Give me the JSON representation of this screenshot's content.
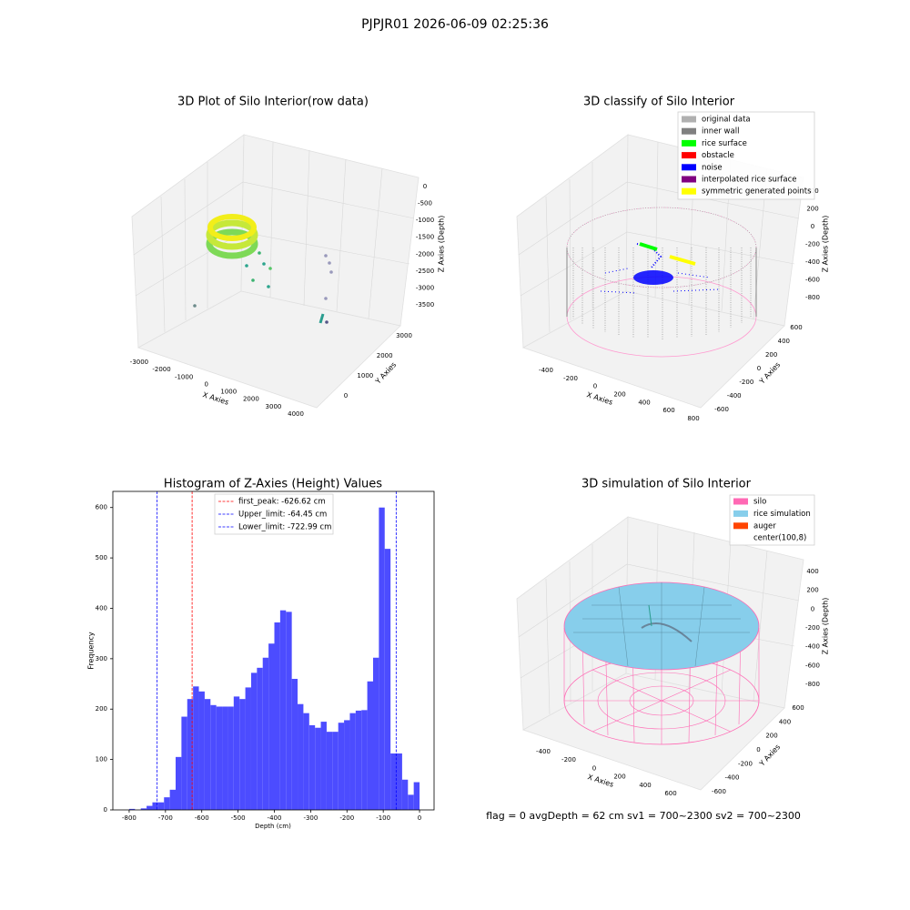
{
  "suptitle": "PJPJR01 2026-06-09 02:25:36",
  "footer": "flag = 0     avgDepth = 62 cm     sv1 = 700~2300  sv2 = 700~2300",
  "chart_data": [
    {
      "type": "scatter3d",
      "title": "3D Plot of Silo Interior(row data)",
      "xlabel": "X Axies",
      "ylabel": "Y Axies",
      "zlabel": "Z Axies (Depth)",
      "xlim": [
        -3300,
        4300
      ],
      "xticks": [
        -3000,
        -2000,
        -1000,
        0,
        1000,
        2000,
        3000,
        4000
      ],
      "ylim": [
        -600,
        3600
      ],
      "yticks": [
        0,
        1000,
        2000,
        3000
      ],
      "zlim": [
        -3800,
        200
      ],
      "zticks": [
        0,
        -500,
        -1000,
        -1500,
        -2000,
        -2500,
        -3000,
        -3500
      ]
    },
    {
      "type": "scatter3d",
      "title": "3D classify of Silo Interior",
      "xlabel": "X Axies",
      "ylabel": "Y Axies",
      "zlabel": "Z Axies (Depth)",
      "xlim": [
        -500,
        850
      ],
      "xticks": [
        -400,
        -200,
        0,
        200,
        400,
        600,
        800
      ],
      "ylim": [
        -700,
        700
      ],
      "yticks": [
        -600,
        -400,
        -200,
        0,
        200,
        400,
        600
      ],
      "zlim": [
        -900,
        450
      ],
      "zticks": [
        400,
        200,
        0,
        -200,
        -400,
        -600,
        -800
      ],
      "legend": [
        {
          "name": "original data",
          "color": "#b0b0b0"
        },
        {
          "name": "inner wall",
          "color": "#808080"
        },
        {
          "name": "rice surface",
          "color": "#00ff00"
        },
        {
          "name": "obstacle",
          "color": "#ff0000"
        },
        {
          "name": "noise",
          "color": "#0000ff"
        },
        {
          "name": "interpolated rice surface",
          "color": "#800080"
        },
        {
          "name": "symmetric generated points",
          "color": "#ffff00"
        }
      ]
    },
    {
      "type": "histogram",
      "title": "Histogram of Z-Axies (Height) Values",
      "xlabel": "Depth (cm)",
      "ylabel": "Frequency",
      "color": "#4c4cff",
      "bins": [
        -800,
        -784,
        -768,
        -752,
        -736,
        -720,
        -704,
        -688,
        -672,
        -656,
        -640,
        -624,
        -608,
        -592,
        -576,
        -560,
        -544,
        -528,
        -512,
        -496,
        -480,
        -464,
        -448,
        -432,
        -416,
        -400,
        -384,
        -368,
        -352,
        -336,
        -320,
        -304,
        -288,
        -272,
        -256,
        -240,
        -224,
        -208,
        -192,
        -176,
        -160,
        -144,
        -128,
        -112,
        -96,
        -80,
        -64,
        -48,
        -32,
        -16,
        0
      ],
      "counts": [
        2,
        0,
        3,
        8,
        15,
        15,
        25,
        40,
        105,
        185,
        220,
        245,
        235,
        220,
        208,
        205,
        205,
        205,
        225,
        220,
        243,
        272,
        282,
        302,
        330,
        372,
        396,
        393,
        260,
        210,
        192,
        168,
        163,
        175,
        155,
        155,
        173,
        178,
        192,
        197,
        198,
        255,
        302,
        600,
        518,
        112,
        112,
        60,
        30,
        55
      ],
      "xlim": [
        -845,
        40
      ],
      "xticks": [
        -800,
        -700,
        -600,
        -500,
        -400,
        -300,
        -200,
        -100,
        0
      ],
      "ylim": [
        0,
        632
      ],
      "yticks": [
        0,
        100,
        200,
        300,
        400,
        500,
        600
      ],
      "vlines": [
        {
          "name": "first_peak: -626.62 cm",
          "value": -626.62,
          "color": "#ff0000"
        },
        {
          "name": "Upper_limit: -64.45 cm",
          "value": -64.45,
          "color": "#0000ff"
        },
        {
          "name": "Lower_limit: -722.99 cm",
          "value": -722.99,
          "color": "#0000ff"
        }
      ]
    },
    {
      "type": "surface3d",
      "title": "3D simulation of Silo Interior",
      "xlabel": "X Axies",
      "ylabel": "Y Axies",
      "zlabel": "Z Axies (Depth)",
      "xlim": [
        -550,
        700
      ],
      "xticks": [
        -400,
        -200,
        0,
        200,
        400,
        600
      ],
      "ylim": [
        -700,
        700
      ],
      "yticks": [
        -600,
        -400,
        -200,
        0,
        200,
        400,
        600
      ],
      "zlim": [
        -900,
        450
      ],
      "zticks": [
        400,
        200,
        0,
        -200,
        -400,
        -600,
        -800
      ],
      "legend": [
        {
          "name": "silo",
          "color": "#ff69b4"
        },
        {
          "name": "rice simulation",
          "color": "#87ceeb"
        },
        {
          "name": "auger",
          "color": "#ff4500"
        },
        {
          "name": "center(100,8)",
          "color": "#ffffff"
        }
      ]
    }
  ]
}
